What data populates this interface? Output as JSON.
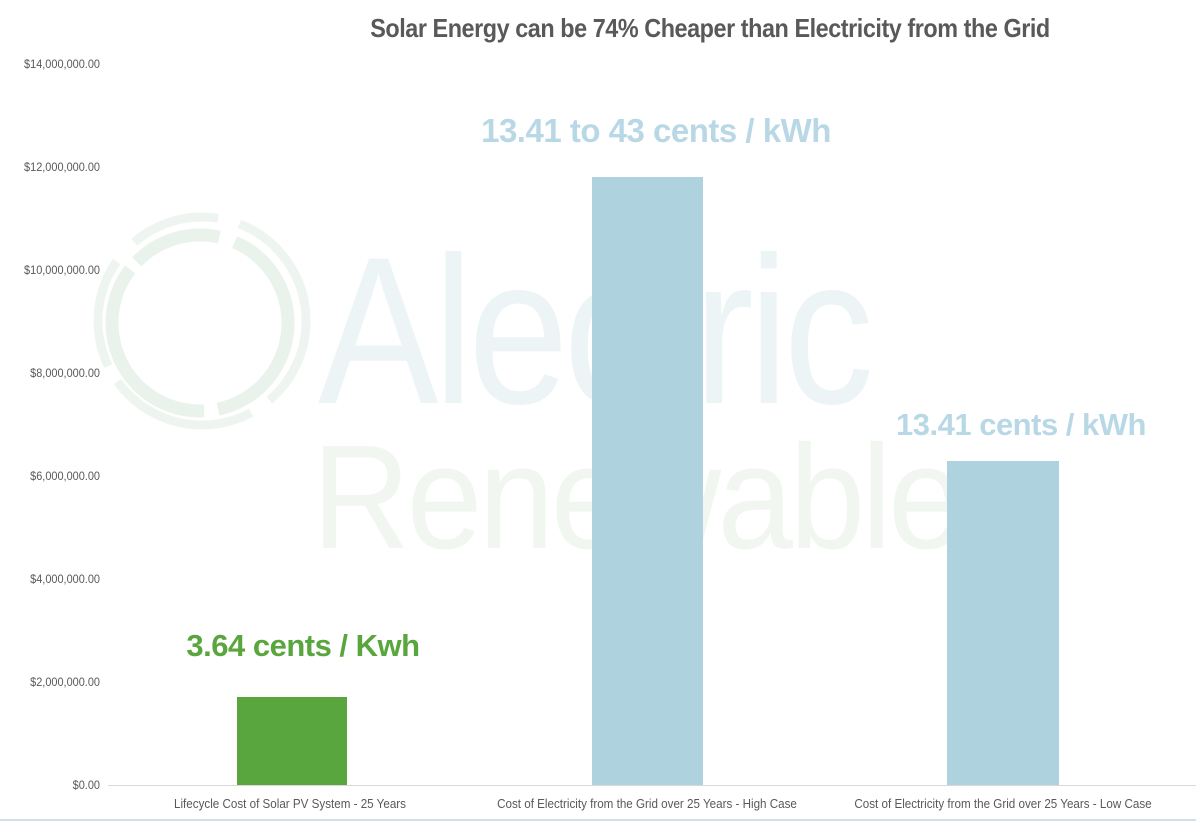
{
  "title": "Solar Energy can be 74% Cheaper than Electricity from the Grid",
  "watermark": {
    "line1": "Alectric",
    "line2": "Renewables",
    "logo_icon": "circle-sketch-logo"
  },
  "colors": {
    "solar_green": "#5aa63e",
    "grid_blue": "#aed2de",
    "annotation_blue": "#b9d8e6",
    "title_gray": "#595959",
    "axis_text_gray": "#595959",
    "axis_line_gray": "#d9d9d9",
    "bottom_border_blue": "#cfe0e9",
    "watermark_blue": "#edf4f6",
    "watermark_green": "#f1f6f0"
  },
  "chart_data": {
    "type": "bar",
    "title": "Solar Energy can be 74% Cheaper than Electricity from the Grid",
    "categories": [
      "Lifecycle Cost of Solar PV System - 25 Years",
      "Cost of Electricity from the Grid over 25 Years - High Case",
      "Cost of Electricity from the Grid over 25 Years - Low Case"
    ],
    "values": [
      1700000,
      11800000,
      6300000
    ],
    "bar_colors": [
      "#5aa63e",
      "#aed2de",
      "#aed2de"
    ],
    "annotations": [
      {
        "text": "3.64 cents / Kwh",
        "color": "#5aa63e"
      },
      {
        "text": "13.41 to 43 cents / kWh",
        "color": "#b9d8e6"
      },
      {
        "text": "13.41 cents / kWh",
        "color": "#b9d8e6"
      }
    ],
    "xlabel": "",
    "ylabel": "",
    "ylim": [
      0,
      14000000
    ],
    "y_ticks": [
      "$14,000,000.00",
      "$12,000,000.00",
      "$10,000,000.00",
      "$8,000,000.00",
      "$6,000,000.00",
      "$4,000,000.00",
      "$2,000,000.00",
      "$0.00"
    ],
    "grid": false,
    "legend": false
  }
}
